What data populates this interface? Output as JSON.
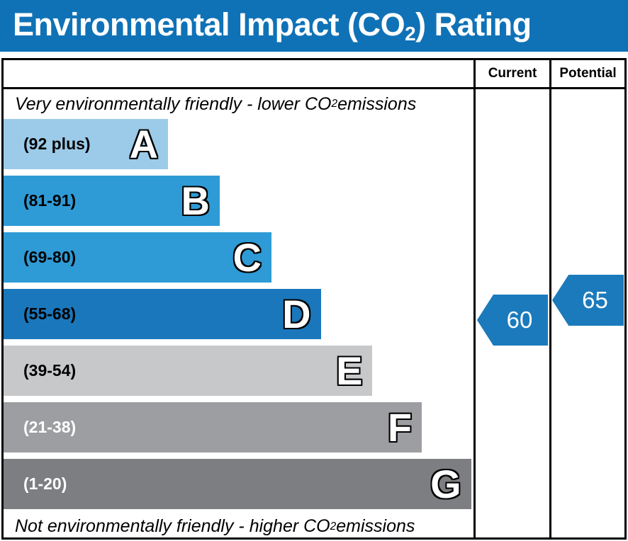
{
  "title": {
    "prefix": "Environmental Impact (CO",
    "sub": "2",
    "suffix": ") Rating"
  },
  "header": {
    "current": "Current",
    "potential": "Potential"
  },
  "top_note": {
    "prefix": "Very environmentally friendly - lower CO",
    "sub": "2",
    "suffix": " emissions"
  },
  "bottom_note": {
    "prefix": "Not environmentally friendly - higher CO",
    "sub": "2",
    "suffix": " emissions"
  },
  "colors": {
    "banner_blue": "#1072b6",
    "border_black": "#000000",
    "arrow_blue": "#1b7abc"
  },
  "chart_data": {
    "type": "bar",
    "title": "Environmental Impact (CO2) Rating",
    "columns": [
      "Current",
      "Potential"
    ],
    "bands": [
      {
        "letter": "A",
        "range_label": "(92 plus)",
        "score_min": 92,
        "score_max": 100,
        "color": "#9ccbe9",
        "label_color": "#000000",
        "width_pct": 35
      },
      {
        "letter": "B",
        "range_label": "(81-91)",
        "score_min": 81,
        "score_max": 91,
        "color": "#2e9bd6",
        "label_color": "#000000",
        "width_pct": 46
      },
      {
        "letter": "C",
        "range_label": "(69-80)",
        "score_min": 69,
        "score_max": 80,
        "color": "#2e9bd6",
        "label_color": "#000000",
        "width_pct": 57
      },
      {
        "letter": "D",
        "range_label": "(55-68)",
        "score_min": 55,
        "score_max": 68,
        "color": "#1b77bb",
        "label_color": "#000000",
        "width_pct": 67.5
      },
      {
        "letter": "E",
        "range_label": "(39-54)",
        "score_min": 39,
        "score_max": 54,
        "color": "#c7c8ca",
        "label_color": "#000000",
        "width_pct": 78.5
      },
      {
        "letter": "F",
        "range_label": "(21-38)",
        "score_min": 21,
        "score_max": 38,
        "color": "#9d9ea1",
        "label_color": "#ffffff",
        "width_pct": 89
      },
      {
        "letter": "G",
        "range_label": "(1-20)",
        "score_min": 1,
        "score_max": 20,
        "color": "#7d7e82",
        "label_color": "#ffffff",
        "width_pct": 99.5
      }
    ],
    "current": {
      "value": 60,
      "band": "D",
      "arrow_color": "#1b7abc"
    },
    "potential": {
      "value": 65,
      "band": "D",
      "arrow_color": "#1b7abc"
    }
  }
}
